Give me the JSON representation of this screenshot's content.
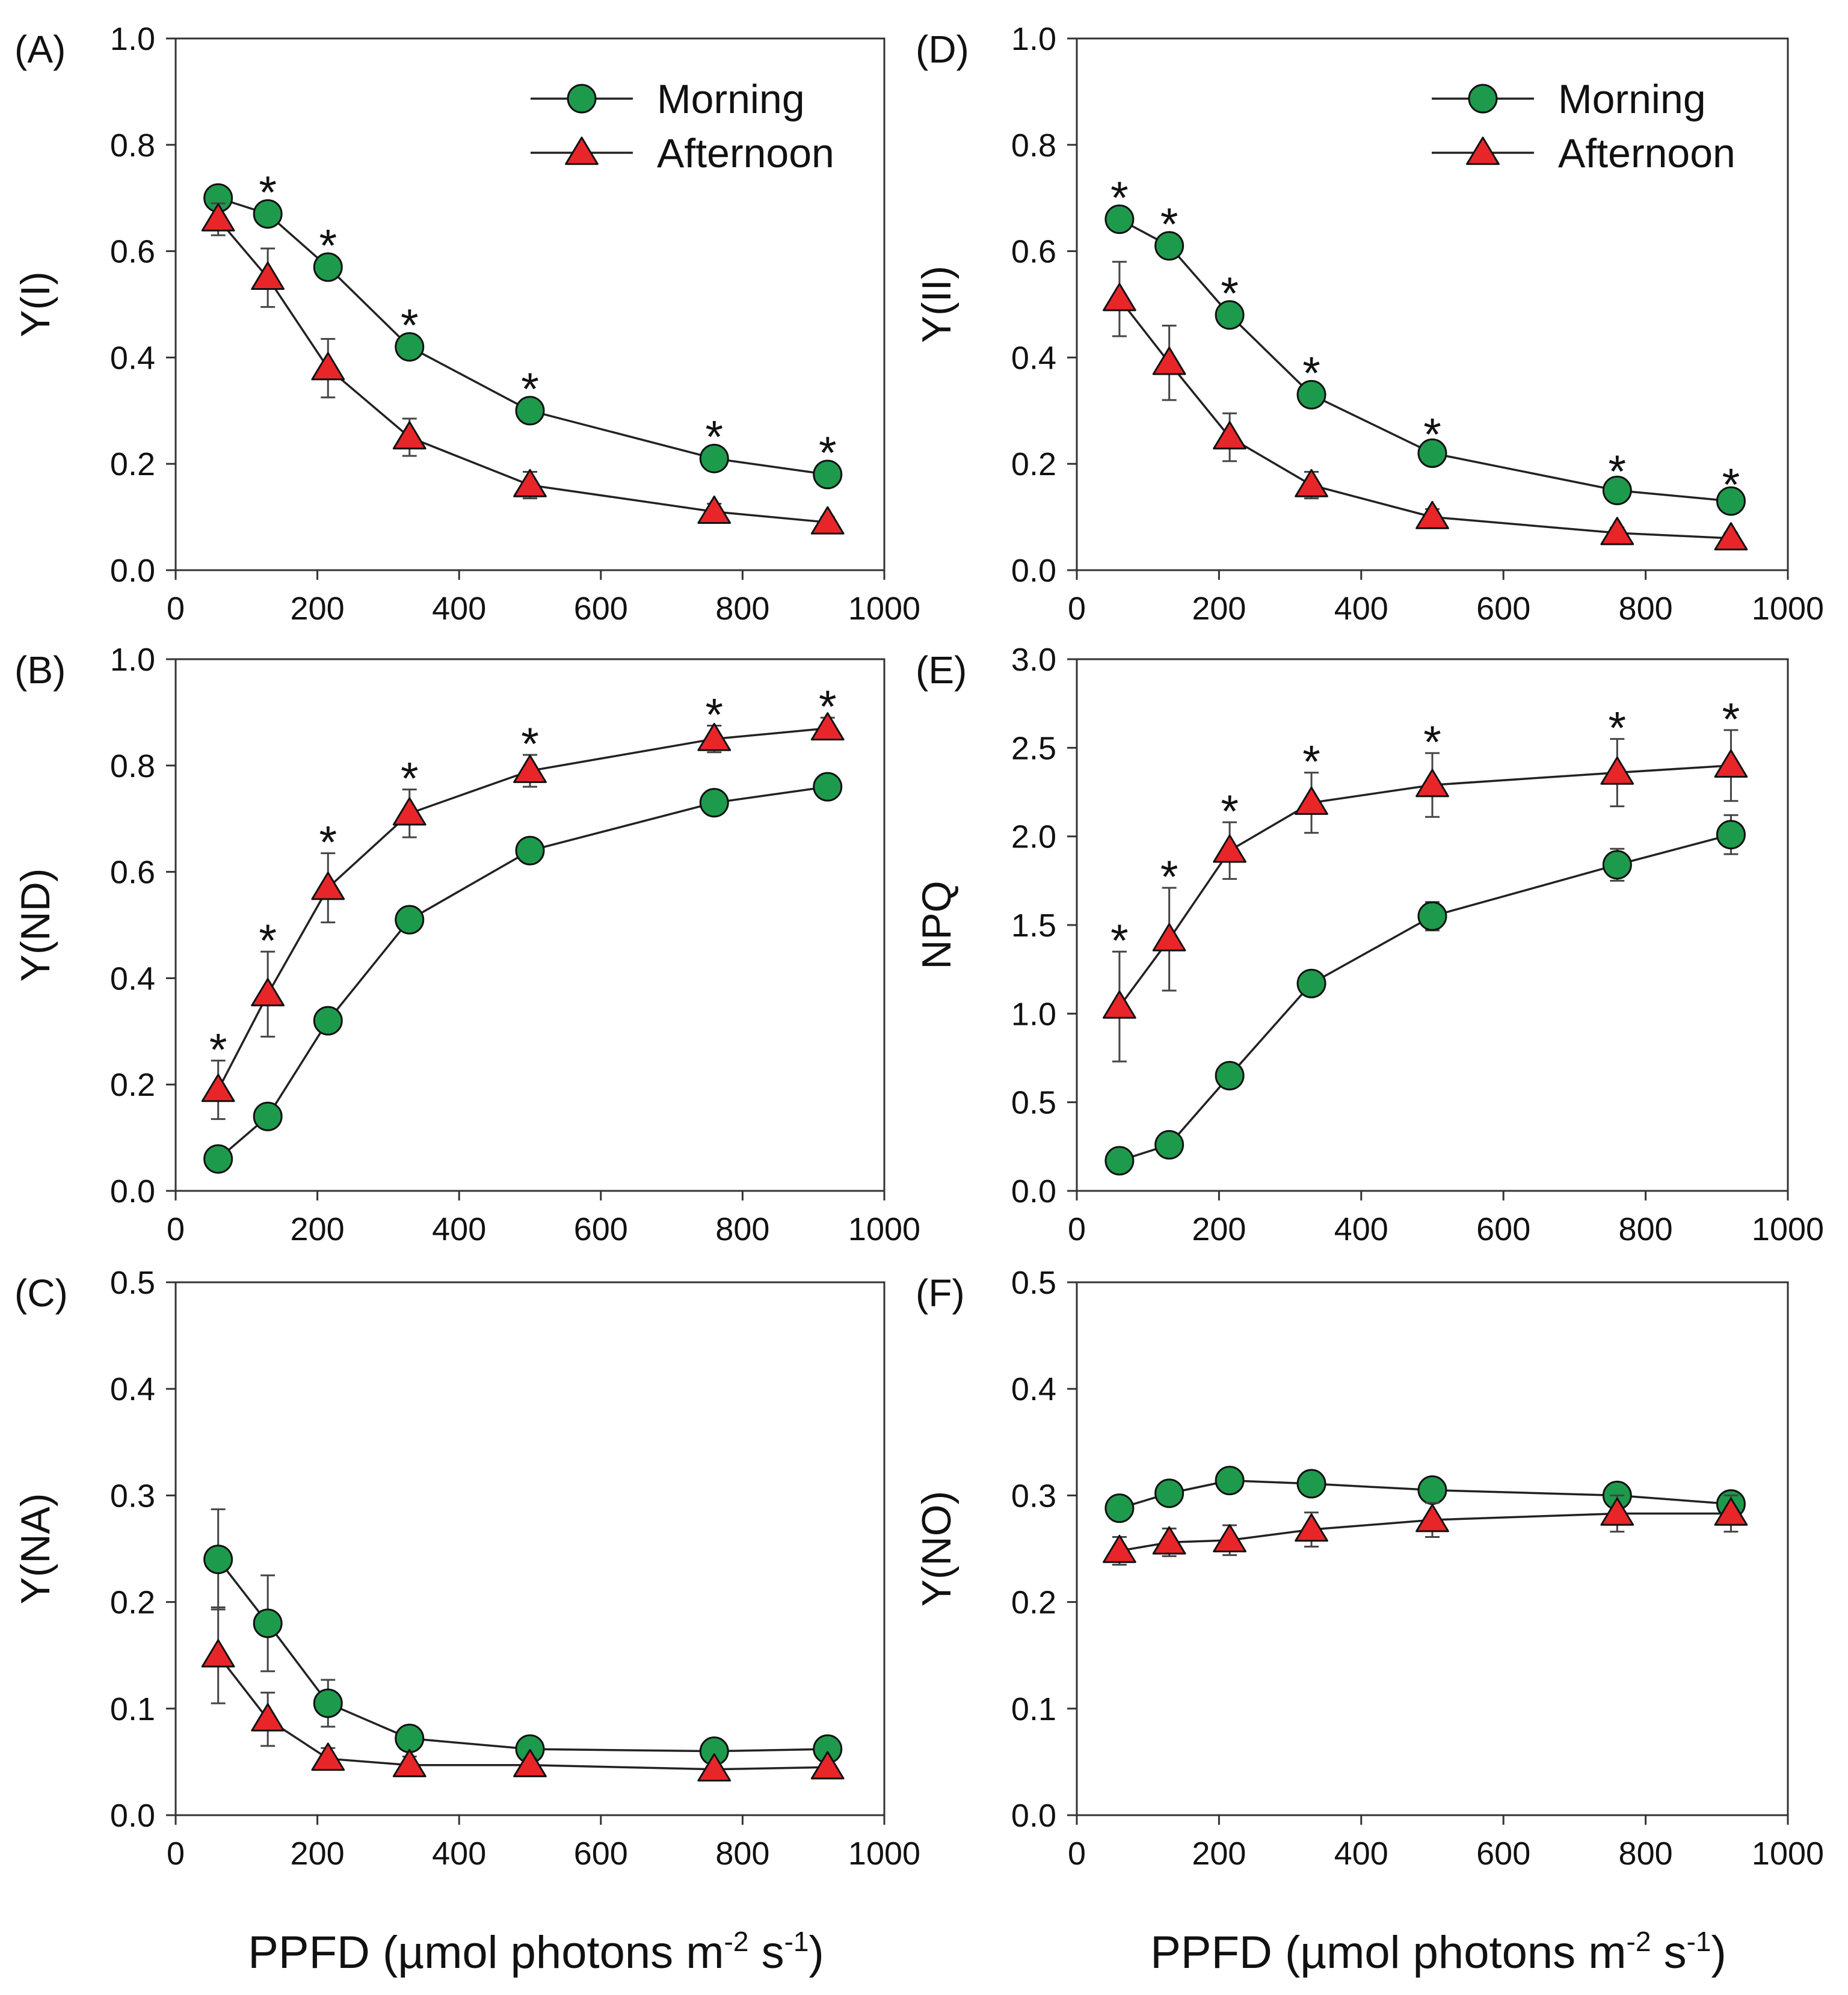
{
  "colors": {
    "morning": "#1e9a4c",
    "afternoon": "#e8262a"
  },
  "xlabel": {
    "main": "PPFD (µmol photons m",
    "exp1": "-2",
    "mid": " s",
    "exp2": "-1",
    "end": ")"
  },
  "chart_data": [
    {
      "id": "A",
      "panel_label": "(A)",
      "ylabel": "Y(I)",
      "type": "line",
      "ylim": [
        0,
        1.0
      ],
      "yticks": [
        0.0,
        0.2,
        0.4,
        0.6,
        0.8,
        1.0
      ],
      "ytick_labels": [
        "0.0",
        "0.2",
        "0.4",
        "0.6",
        "0.8",
        "1.0"
      ],
      "xticks": [
        0,
        200,
        400,
        600,
        800,
        1000
      ],
      "xtick_labels": [
        "0",
        "200",
        "400",
        "600",
        "800",
        "1000"
      ],
      "legend": true,
      "x": [
        60,
        130,
        215,
        330,
        500,
        760,
        920
      ],
      "series": [
        {
          "name": "Morning",
          "marker": "circle",
          "values": [
            0.7,
            0.67,
            0.57,
            0.42,
            0.3,
            0.21,
            0.18
          ],
          "err": [
            0.02,
            0.02,
            0.02,
            0.02,
            0.02,
            0.02,
            0.02
          ]
        },
        {
          "name": "Afternoon",
          "marker": "triangle",
          "values": [
            0.66,
            0.55,
            0.38,
            0.25,
            0.16,
            0.11,
            0.09
          ],
          "err": [
            0.03,
            0.055,
            0.055,
            0.035,
            0.025,
            0.015,
            0.01
          ]
        }
      ],
      "significance": [
        "",
        "*",
        "*",
        "*",
        "*",
        "*",
        "*"
      ]
    },
    {
      "id": "D",
      "panel_label": "(D)",
      "ylabel": "Y(II)",
      "type": "line",
      "ylim": [
        0,
        1.0
      ],
      "yticks": [
        0.0,
        0.2,
        0.4,
        0.6,
        0.8,
        1.0
      ],
      "ytick_labels": [
        "0.0",
        "0.2",
        "0.4",
        "0.6",
        "0.8",
        "1.0"
      ],
      "xticks": [
        0,
        200,
        400,
        600,
        800,
        1000
      ],
      "xtick_labels": [
        "0",
        "200",
        "400",
        "600",
        "800",
        "1000"
      ],
      "legend": true,
      "x": [
        60,
        130,
        215,
        330,
        500,
        760,
        920
      ],
      "series": [
        {
          "name": "Morning",
          "marker": "circle",
          "values": [
            0.66,
            0.61,
            0.48,
            0.33,
            0.22,
            0.15,
            0.13
          ],
          "err": [
            0.02,
            0.02,
            0.02,
            0.02,
            0.015,
            0.015,
            0.01
          ]
        },
        {
          "name": "Afternoon",
          "marker": "triangle",
          "values": [
            0.51,
            0.39,
            0.25,
            0.16,
            0.1,
            0.07,
            0.06
          ],
          "err": [
            0.07,
            0.07,
            0.045,
            0.025,
            0.015,
            0.01,
            0.01
          ]
        }
      ],
      "significance": [
        "*",
        "*",
        "*",
        "*",
        "*",
        "*",
        "*"
      ]
    },
    {
      "id": "B",
      "panel_label": "(B)",
      "ylabel": "Y(ND)",
      "type": "line",
      "ylim": [
        0,
        1.0
      ],
      "yticks": [
        0.0,
        0.2,
        0.4,
        0.6,
        0.8,
        1.0
      ],
      "ytick_labels": [
        "0.0",
        "0.2",
        "0.4",
        "0.6",
        "0.8",
        "1.0"
      ],
      "xticks": [
        0,
        200,
        400,
        600,
        800,
        1000
      ],
      "xtick_labels": [
        "0",
        "200",
        "400",
        "600",
        "800",
        "1000"
      ],
      "legend": false,
      "x": [
        60,
        130,
        215,
        330,
        500,
        760,
        920
      ],
      "series": [
        {
          "name": "Morning",
          "marker": "circle",
          "values": [
            0.06,
            0.14,
            0.32,
            0.51,
            0.64,
            0.73,
            0.76
          ],
          "err": [
            0.01,
            0.01,
            0.02,
            0.015,
            0.015,
            0.015,
            0.015
          ]
        },
        {
          "name": "Afternoon",
          "marker": "triangle",
          "values": [
            0.19,
            0.37,
            0.57,
            0.71,
            0.79,
            0.85,
            0.87
          ],
          "err": [
            0.055,
            0.08,
            0.065,
            0.045,
            0.03,
            0.025,
            0.02
          ]
        }
      ],
      "significance": [
        "*",
        "*",
        "*",
        "*",
        "*",
        "*",
        "*"
      ]
    },
    {
      "id": "E",
      "panel_label": "(E)",
      "ylabel": "NPQ",
      "type": "line",
      "ylim": [
        0,
        3.0
      ],
      "yticks": [
        0.0,
        0.5,
        1.0,
        1.5,
        2.0,
        2.5,
        3.0
      ],
      "ytick_labels": [
        "0.0",
        "0.5",
        "1.0",
        "1.5",
        "2.0",
        "2.5",
        "3.0"
      ],
      "xticks": [
        0,
        200,
        400,
        600,
        800,
        1000
      ],
      "xtick_labels": [
        "0",
        "200",
        "400",
        "600",
        "800",
        "1000"
      ],
      "legend": false,
      "x": [
        60,
        130,
        215,
        330,
        500,
        760,
        920
      ],
      "series": [
        {
          "name": "Morning",
          "marker": "circle",
          "values": [
            0.17,
            0.26,
            0.65,
            1.17,
            1.55,
            1.84,
            2.01
          ],
          "err": [
            0.03,
            0.03,
            0.04,
            0.06,
            0.08,
            0.09,
            0.11
          ]
        },
        {
          "name": "Afternoon",
          "marker": "triangle",
          "values": [
            1.04,
            1.42,
            1.92,
            2.19,
            2.29,
            2.36,
            2.4
          ],
          "err": [
            0.31,
            0.29,
            0.16,
            0.17,
            0.18,
            0.19,
            0.2
          ]
        }
      ],
      "significance": [
        "*",
        "*",
        "*",
        "*",
        "*",
        "*",
        "*"
      ]
    },
    {
      "id": "C",
      "panel_label": "(C)",
      "ylabel": "Y(NA)",
      "type": "line",
      "ylim": [
        0,
        0.5
      ],
      "yticks": [
        0.0,
        0.1,
        0.2,
        0.3,
        0.4,
        0.5
      ],
      "ytick_labels": [
        "0.0",
        "0.1",
        "0.2",
        "0.3",
        "0.4",
        "0.5"
      ],
      "xticks": [
        0,
        200,
        400,
        600,
        800,
        1000
      ],
      "xtick_labels": [
        "0",
        "200",
        "400",
        "600",
        "800",
        "1000"
      ],
      "legend": false,
      "x": [
        60,
        130,
        215,
        330,
        500,
        760,
        920
      ],
      "series": [
        {
          "name": "Morning",
          "marker": "circle",
          "values": [
            0.24,
            0.18,
            0.105,
            0.072,
            0.062,
            0.06,
            0.062
          ],
          "err": [
            0.047,
            0.045,
            0.022,
            0.01,
            0.008,
            0.006,
            0.006
          ]
        },
        {
          "name": "Afternoon",
          "marker": "triangle",
          "values": [
            0.15,
            0.09,
            0.053,
            0.047,
            0.047,
            0.043,
            0.045
          ],
          "err": [
            0.045,
            0.025,
            0.01,
            0.008,
            0.006,
            0.006,
            0.005
          ]
        }
      ],
      "significance": [
        "",
        "",
        "",
        "",
        "",
        "",
        ""
      ]
    },
    {
      "id": "F",
      "panel_label": "(F)",
      "ylabel": "Y(NO)",
      "type": "line",
      "ylim": [
        0,
        0.5
      ],
      "yticks": [
        0.0,
        0.1,
        0.2,
        0.3,
        0.4,
        0.5
      ],
      "ytick_labels": [
        "0.0",
        "0.1",
        "0.2",
        "0.3",
        "0.4",
        "0.5"
      ],
      "xticks": [
        0,
        200,
        400,
        600,
        800,
        1000
      ],
      "xtick_labels": [
        "0",
        "200",
        "400",
        "600",
        "800",
        "1000"
      ],
      "legend": false,
      "x": [
        60,
        130,
        215,
        330,
        500,
        760,
        920
      ],
      "series": [
        {
          "name": "Morning",
          "marker": "circle",
          "values": [
            0.288,
            0.302,
            0.314,
            0.311,
            0.305,
            0.3,
            0.292
          ],
          "err": [
            0.008,
            0.008,
            0.008,
            0.008,
            0.008,
            0.008,
            0.008
          ]
        },
        {
          "name": "Afternoon",
          "marker": "triangle",
          "values": [
            0.248,
            0.256,
            0.258,
            0.268,
            0.277,
            0.283,
            0.283
          ],
          "err": [
            0.013,
            0.013,
            0.014,
            0.016,
            0.016,
            0.017,
            0.017
          ]
        }
      ],
      "significance": [
        "",
        "",
        "",
        "",
        "",
        "",
        ""
      ]
    }
  ]
}
